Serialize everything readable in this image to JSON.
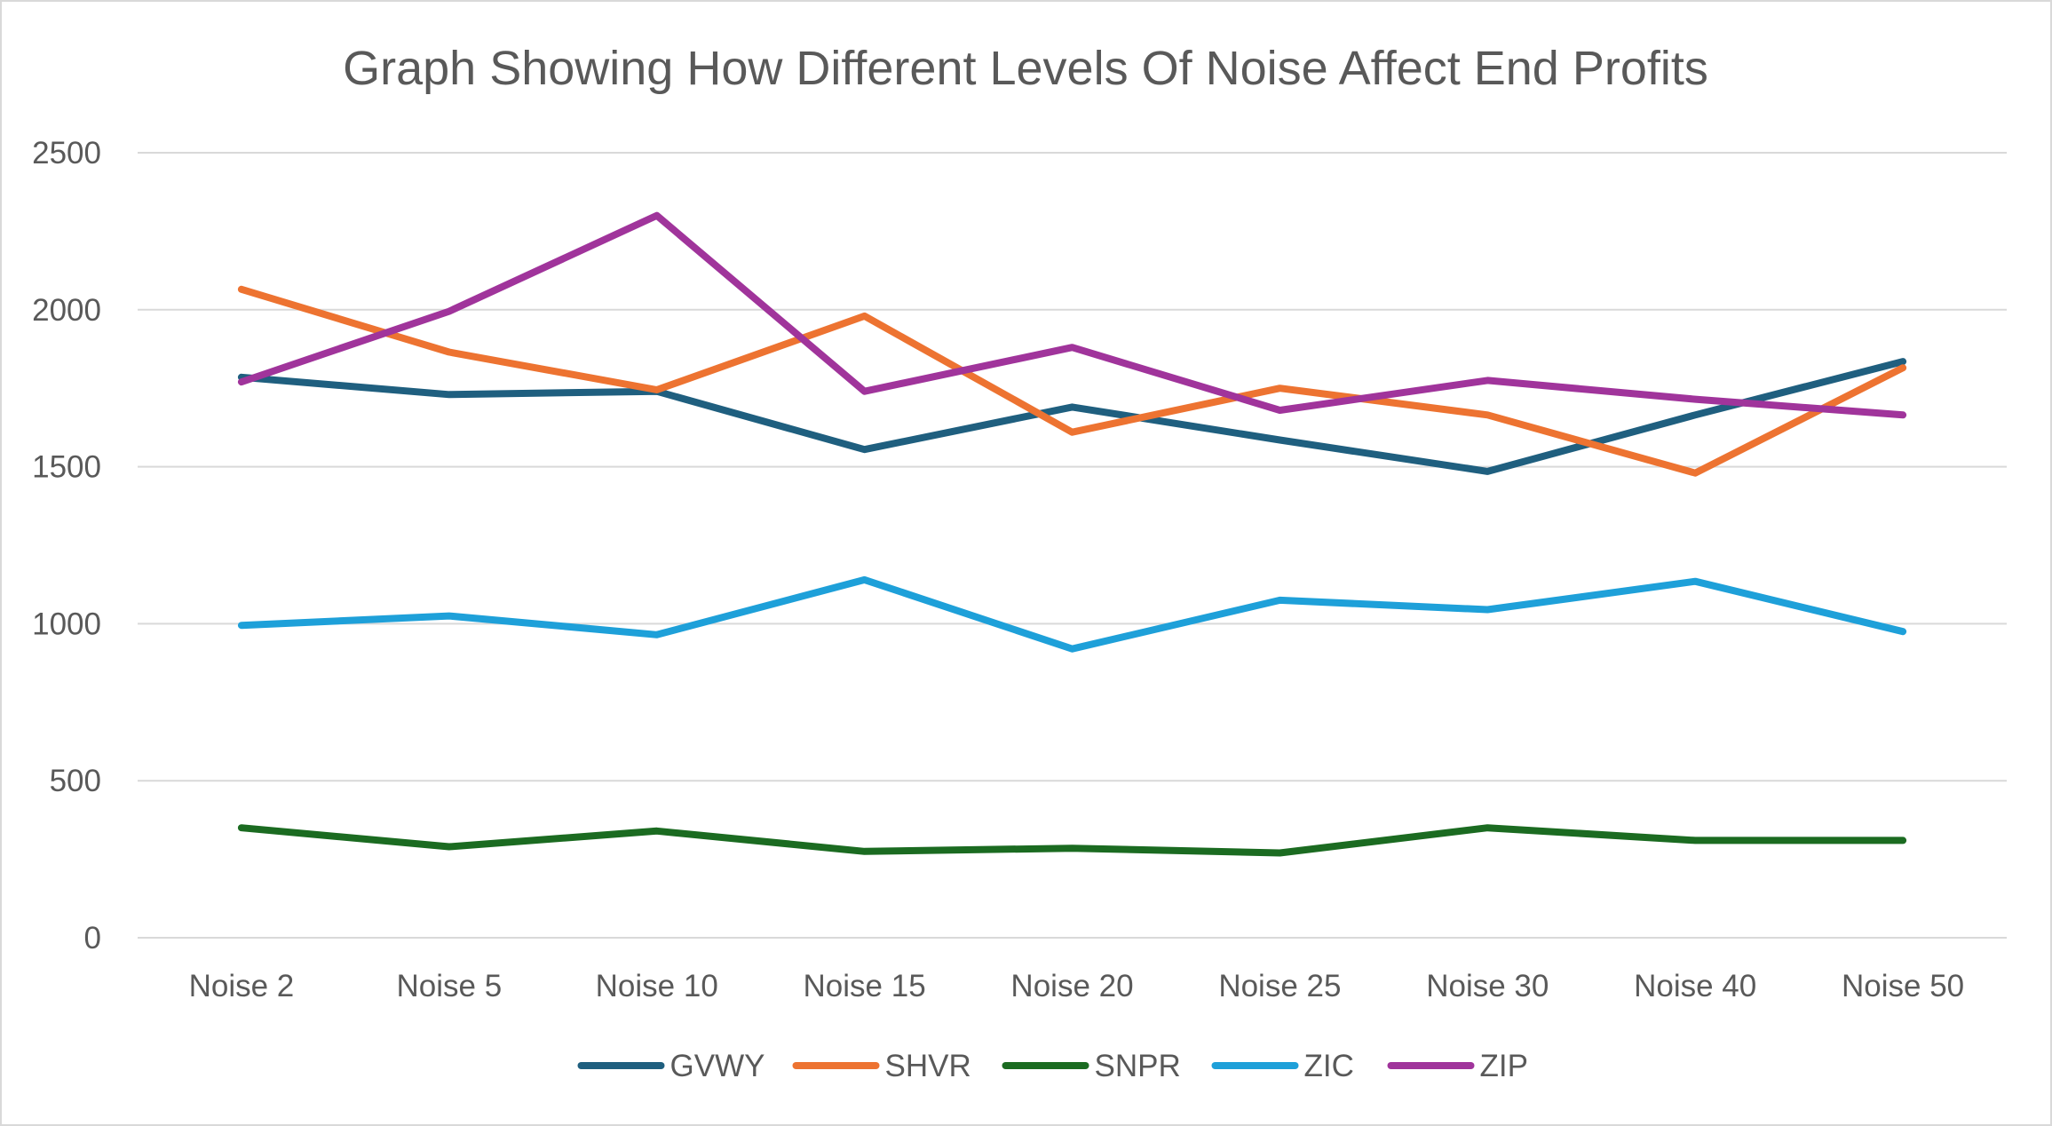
{
  "chart_data": {
    "type": "line",
    "title": "Graph Showing How Different Levels Of Noise Affect End Profits",
    "xlabel": "",
    "ylabel": "",
    "categories": [
      "Noise 2",
      "Noise 5",
      "Noise 10",
      "Noise 15",
      "Noise 20",
      "Noise 25",
      "Noise 30",
      "Noise 40",
      "Noise 50"
    ],
    "ylim": [
      0,
      2500
    ],
    "yticks": [
      0,
      500,
      1000,
      1500,
      2000,
      2500
    ],
    "grid": true,
    "legend": "bottom",
    "series": [
      {
        "name": "GVWY",
        "color": "#1f5f7f",
        "values": [
          1785,
          1730,
          1740,
          1555,
          1690,
          1585,
          1485,
          1665,
          1835
        ]
      },
      {
        "name": "SHVR",
        "color": "#ed7331",
        "values": [
          2065,
          1865,
          1745,
          1980,
          1610,
          1750,
          1665,
          1480,
          1815
        ]
      },
      {
        "name": "SNPR",
        "color": "#1b6b21",
        "values": [
          350,
          290,
          340,
          275,
          285,
          270,
          350,
          310,
          310
        ]
      },
      {
        "name": "ZIC",
        "color": "#1ea0d9",
        "values": [
          995,
          1025,
          965,
          1140,
          920,
          1075,
          1045,
          1135,
          975
        ]
      },
      {
        "name": "ZIP",
        "color": "#a0349b",
        "values": [
          1770,
          1995,
          2300,
          1740,
          1880,
          1680,
          1775,
          1715,
          1665
        ]
      }
    ]
  }
}
